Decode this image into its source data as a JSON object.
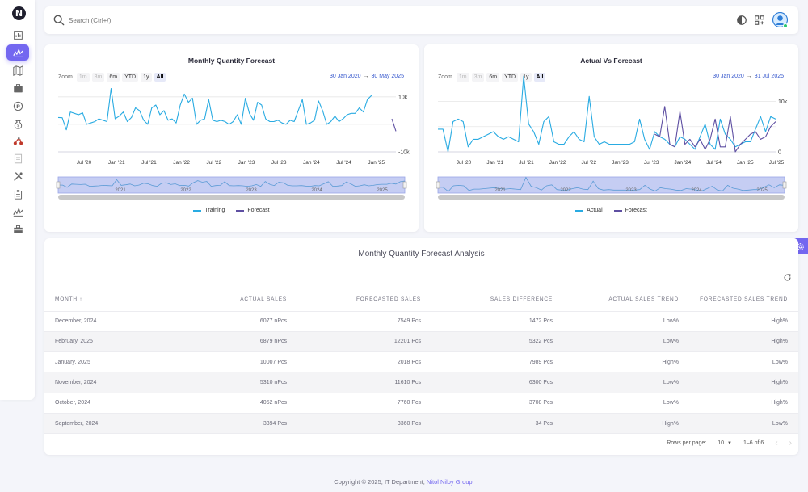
{
  "logo": "N",
  "search": {
    "placeholder": "Search (Ctrl+/)"
  },
  "sidebar": {
    "items": [
      {
        "icon": "bar-chart-icon"
      },
      {
        "icon": "line-chart-icon",
        "active": true
      },
      {
        "icon": "map-icon"
      },
      {
        "icon": "briefcase-icon"
      },
      {
        "icon": "parking-icon"
      },
      {
        "icon": "money-bag-icon"
      },
      {
        "icon": "motorcycle-icon"
      },
      {
        "icon": "document-icon"
      },
      {
        "icon": "tools-icon"
      },
      {
        "icon": "clipboard-icon"
      },
      {
        "icon": "analytics-icon"
      },
      {
        "icon": "toolbox-icon"
      }
    ]
  },
  "colors": {
    "accent": "#7367f0",
    "training": "#29abe2",
    "forecast": "#5e4fa2"
  },
  "chart1": {
    "title": "Monthly Quantity Forecast",
    "zoom_label": "Zoom",
    "zoom_buttons": [
      "1m",
      "3m",
      "6m",
      "YTD",
      "1y",
      "All"
    ],
    "date_from": "30 Jan 2020",
    "date_to": "30 May 2025",
    "arrow": "→",
    "legend": [
      "Training",
      "Forecast"
    ]
  },
  "chart2": {
    "title": "Actual Vs Forecast",
    "zoom_label": "Zoom",
    "zoom_buttons": [
      "1m",
      "3m",
      "6m",
      "YTD",
      "1y",
      "All"
    ],
    "date_from": "30 Jan 2020",
    "date_to": "31 Jul 2025",
    "arrow": "→",
    "legend": [
      "Actual",
      "Forecast"
    ]
  },
  "chart_data": [
    {
      "type": "line",
      "title": "Monthly Quantity Forecast",
      "x_ticks": [
        "Jul '20",
        "Jan '21",
        "Jul '21",
        "Jan '22",
        "Jul '22",
        "Jan '23",
        "Jul '23",
        "Jan '24",
        "Jul '24",
        "Jan '25"
      ],
      "y_ticks": [
        "10k",
        "-10k"
      ],
      "navigator_ticks": [
        "2021",
        "2022",
        "2023",
        "2024",
        "2025"
      ],
      "ylim": [
        -10000,
        12000
      ],
      "series": [
        {
          "name": "Training",
          "color": "#29abe2",
          "values": [
            2500,
            2400,
            -2000,
            4500,
            4000,
            3500,
            4200,
            0,
            500,
            1000,
            2000,
            1500,
            1000,
            13000,
            2000,
            3000,
            4500,
            1000,
            2500,
            6000,
            5000,
            1500,
            0,
            6000,
            7000,
            3500,
            5000,
            1500,
            2000,
            500,
            7000,
            11000,
            8000,
            9500,
            0,
            1500,
            2000,
            9000,
            1500,
            1000,
            1500,
            1000,
            0,
            1000,
            3500,
            0,
            9500,
            4000,
            1500,
            8000,
            7000,
            2000,
            1000,
            1000,
            1500,
            500,
            0,
            1500,
            1000,
            5000,
            9000,
            0,
            500,
            1500,
            8500,
            5000,
            0,
            1000,
            3000,
            1000,
            2000,
            3500,
            4000,
            4000,
            6000,
            4500,
            9000,
            10500
          ]
        },
        {
          "name": "Forecast",
          "color": "#5e4fa2",
          "values": [
            2000,
            -2500
          ]
        }
      ]
    },
    {
      "type": "line",
      "title": "Actual Vs Forecast",
      "x_ticks": [
        "Jul '20",
        "Jan '21",
        "Jul '21",
        "Jan '22",
        "Jul '22",
        "Jan '23",
        "Jul '23",
        "Jan '24",
        "Jul '24",
        "Jan '25",
        "Jul '25"
      ],
      "y_ticks": [
        "10k",
        "0"
      ],
      "navigator_ticks": [
        "2021",
        "2022",
        "2023",
        "2024",
        "2025"
      ],
      "ylim": [
        0,
        12000
      ],
      "series": [
        {
          "name": "Actual",
          "color": "#29abe2",
          "values": [
            4500,
            4500,
            0,
            6000,
            6500,
            6000,
            1000,
            2500,
            2500,
            3000,
            3500,
            4000,
            3000,
            2500,
            3000,
            2500,
            2000,
            15000,
            5500,
            4000,
            1500,
            6000,
            7000,
            2000,
            1500,
            1500,
            3000,
            4000,
            2500,
            2000,
            11000,
            3000,
            1500,
            2000,
            1500,
            1500,
            1500,
            1500,
            1500,
            2000,
            6500,
            2500,
            500,
            4000,
            3000,
            2500,
            1500,
            1000,
            3000,
            2500,
            1500,
            500,
            3000,
            5500,
            1500,
            500,
            6500,
            3500,
            2500,
            1000,
            1500,
            2000,
            2000,
            4500,
            7000,
            4000,
            7000,
            6500
          ]
        },
        {
          "name": "Forecast",
          "color": "#5e4fa2",
          "values": [
            3500,
            3000,
            9000,
            1500,
            1000,
            8000,
            1500,
            2500,
            1000,
            2500,
            500,
            2500,
            6500,
            1000,
            1000,
            7000,
            0,
            1500,
            2500,
            3500,
            4000,
            2500,
            3000,
            5000,
            6000
          ]
        }
      ]
    }
  ],
  "table": {
    "title": "Monthly Quantity Forecast Analysis",
    "headers": [
      "Month ↑",
      "Actual Sales",
      "Forecasted Sales",
      "Sales Difference",
      "Actual Sales Trend",
      "Forecasted Sales Trend"
    ],
    "rows": [
      [
        "December, 2024",
        "6077 nPcs",
        "7549 Pcs",
        "1472 Pcs",
        "Low%",
        "High%"
      ],
      [
        "February, 2025",
        "6879 nPcs",
        "12201 Pcs",
        "5322 Pcs",
        "Low%",
        "High%"
      ],
      [
        "January, 2025",
        "10007 Pcs",
        "2018 Pcs",
        "7989 Pcs",
        "High%",
        "Low%"
      ],
      [
        "November, 2024",
        "5310 nPcs",
        "11610 Pcs",
        "6300 Pcs",
        "Low%",
        "High%"
      ],
      [
        "October, 2024",
        "4052 nPcs",
        "7760 Pcs",
        "3708 Pcs",
        "Low%",
        "High%"
      ],
      [
        "September, 2024",
        "3394 Pcs",
        "3360 Pcs",
        "34 Pcs",
        "High%",
        "Low%"
      ]
    ],
    "rows_per_page_label": "Rows per page:",
    "rows_per_page": "10",
    "range": "1–6 of 6"
  },
  "copyright": {
    "text": "Copyright © 2025, IT Department,",
    "brand": "Nitol Niloy Group."
  }
}
